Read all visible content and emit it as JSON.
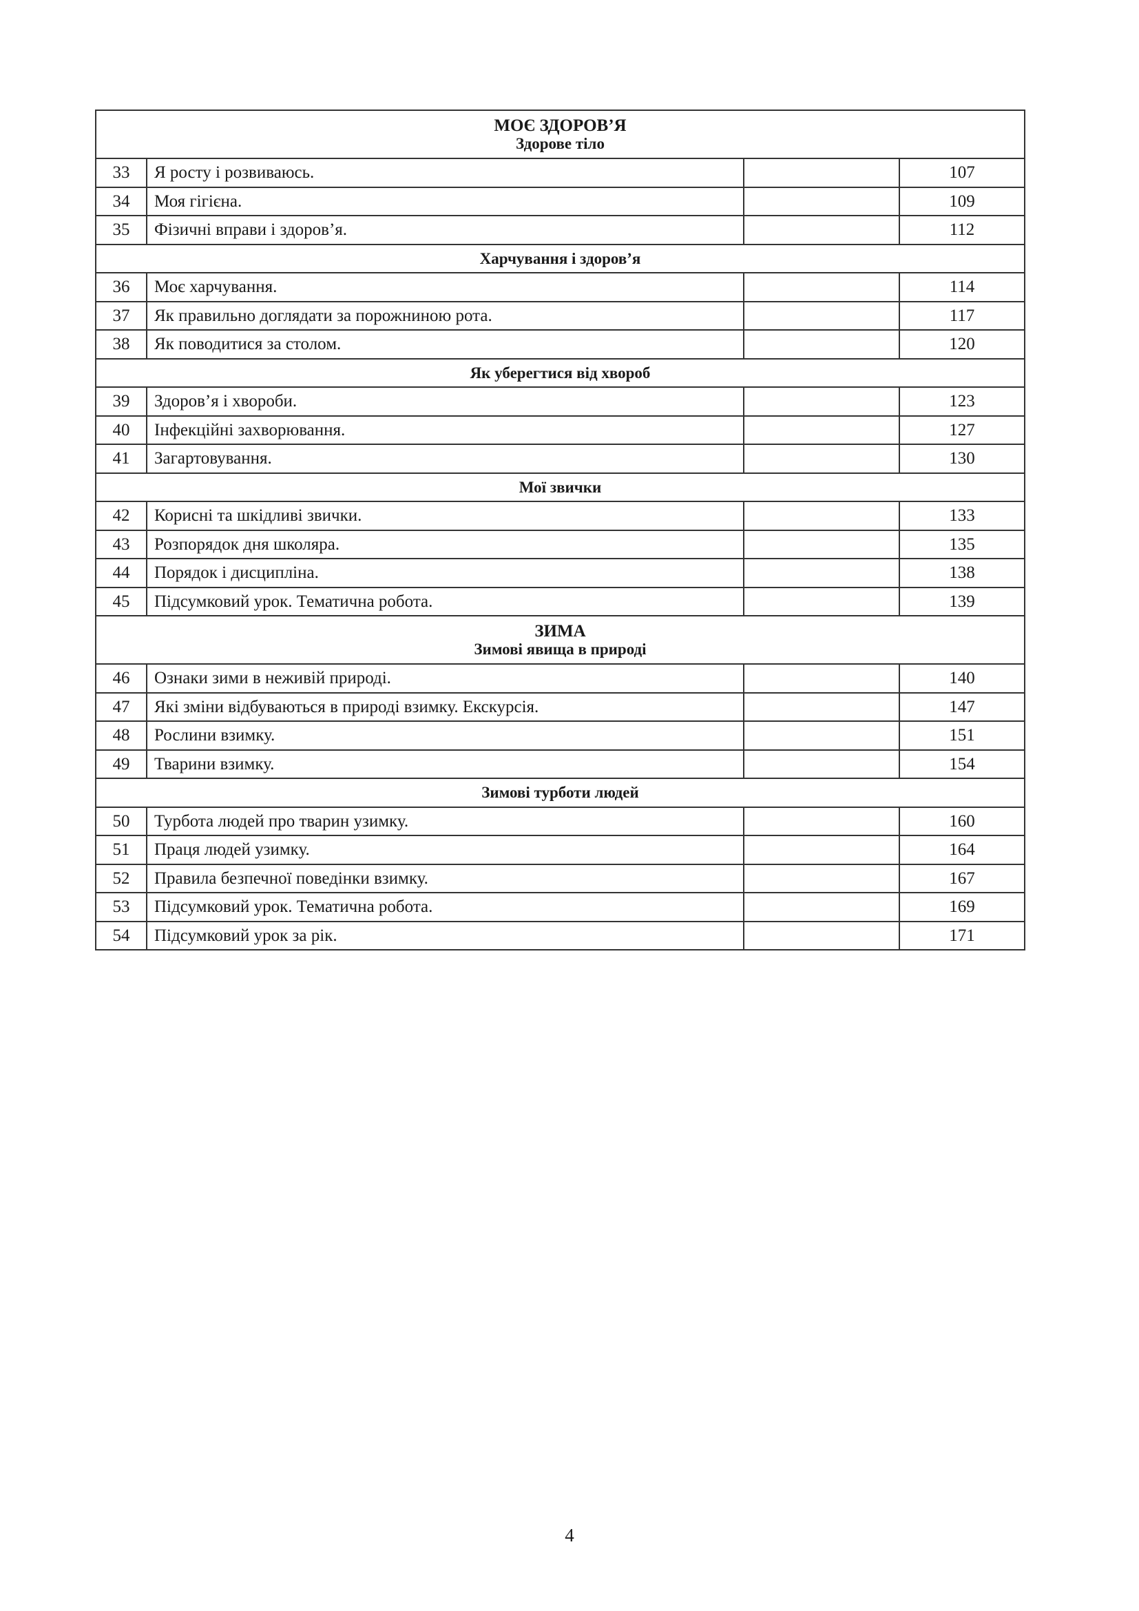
{
  "sections": [
    {
      "title": "МОЄ ЗДОРОВ’Я",
      "subtitle": "Здорове тіло",
      "rows": [
        {
          "n": "33",
          "t": "Я росту і розвиваюсь.",
          "p": "107"
        },
        {
          "n": "34",
          "t": "Моя гігієна.",
          "p": "109"
        },
        {
          "n": "35",
          "t": "Фізичні вправи і здоров’я.",
          "p": "112"
        }
      ]
    },
    {
      "subtitle": "Харчування і здоров’я",
      "rows": [
        {
          "n": "36",
          "t": "Моє харчування.",
          "p": "114"
        },
        {
          "n": "37",
          "t": "Як правильно доглядати за порожниною рота.",
          "p": "117"
        },
        {
          "n": "38",
          "t": "Як поводитися за столом.",
          "p": "120"
        }
      ]
    },
    {
      "subtitle": "Як уберегтися від хвороб",
      "rows": [
        {
          "n": "39",
          "t": "Здоров’я і хвороби.",
          "p": "123"
        },
        {
          "n": "40",
          "t": "Інфекційні захворювання.",
          "p": "127"
        },
        {
          "n": "41",
          "t": "Загартовування.",
          "p": "130"
        }
      ]
    },
    {
      "subtitle": "Мої звички",
      "rows": [
        {
          "n": "42",
          "t": "Корисні та шкідливі звички.",
          "p": "133"
        },
        {
          "n": "43",
          "t": "Розпорядок дня школяра.",
          "p": "135"
        },
        {
          "n": "44",
          "t": "Порядок і дисципліна.",
          "p": "138"
        },
        {
          "n": "45",
          "t": "Підсумковий урок. Тематична робота.",
          "p": "139"
        }
      ]
    },
    {
      "title": "ЗИМА",
      "subtitle": "Зимові явища в природі",
      "rows": [
        {
          "n": "46",
          "t": "Ознаки зими в неживій природі.",
          "p": "140"
        },
        {
          "n": "47",
          "t": "Які зміни відбуваються в природі взимку. Екскурсія.",
          "p": "147"
        },
        {
          "n": "48",
          "t": "Рослини взимку.",
          "p": "151"
        },
        {
          "n": "49",
          "t": "Тварини взимку.",
          "p": "154"
        }
      ]
    },
    {
      "subtitle": "Зимові турботи людей",
      "rows": [
        {
          "n": "50",
          "t": "Турбота людей про тварин узимку.",
          "p": "160"
        },
        {
          "n": "51",
          "t": "Праця людей узимку.",
          "p": "164"
        },
        {
          "n": "52",
          "t": "Правила безпечної поведінки взимку.",
          "p": "167"
        },
        {
          "n": "53",
          "t": "Підсумковий урок. Тематична робота.",
          "p": "169"
        },
        {
          "n": "54",
          "t": "Підсумковий урок за рік.",
          "p": "171"
        }
      ]
    }
  ],
  "page_number": "4"
}
